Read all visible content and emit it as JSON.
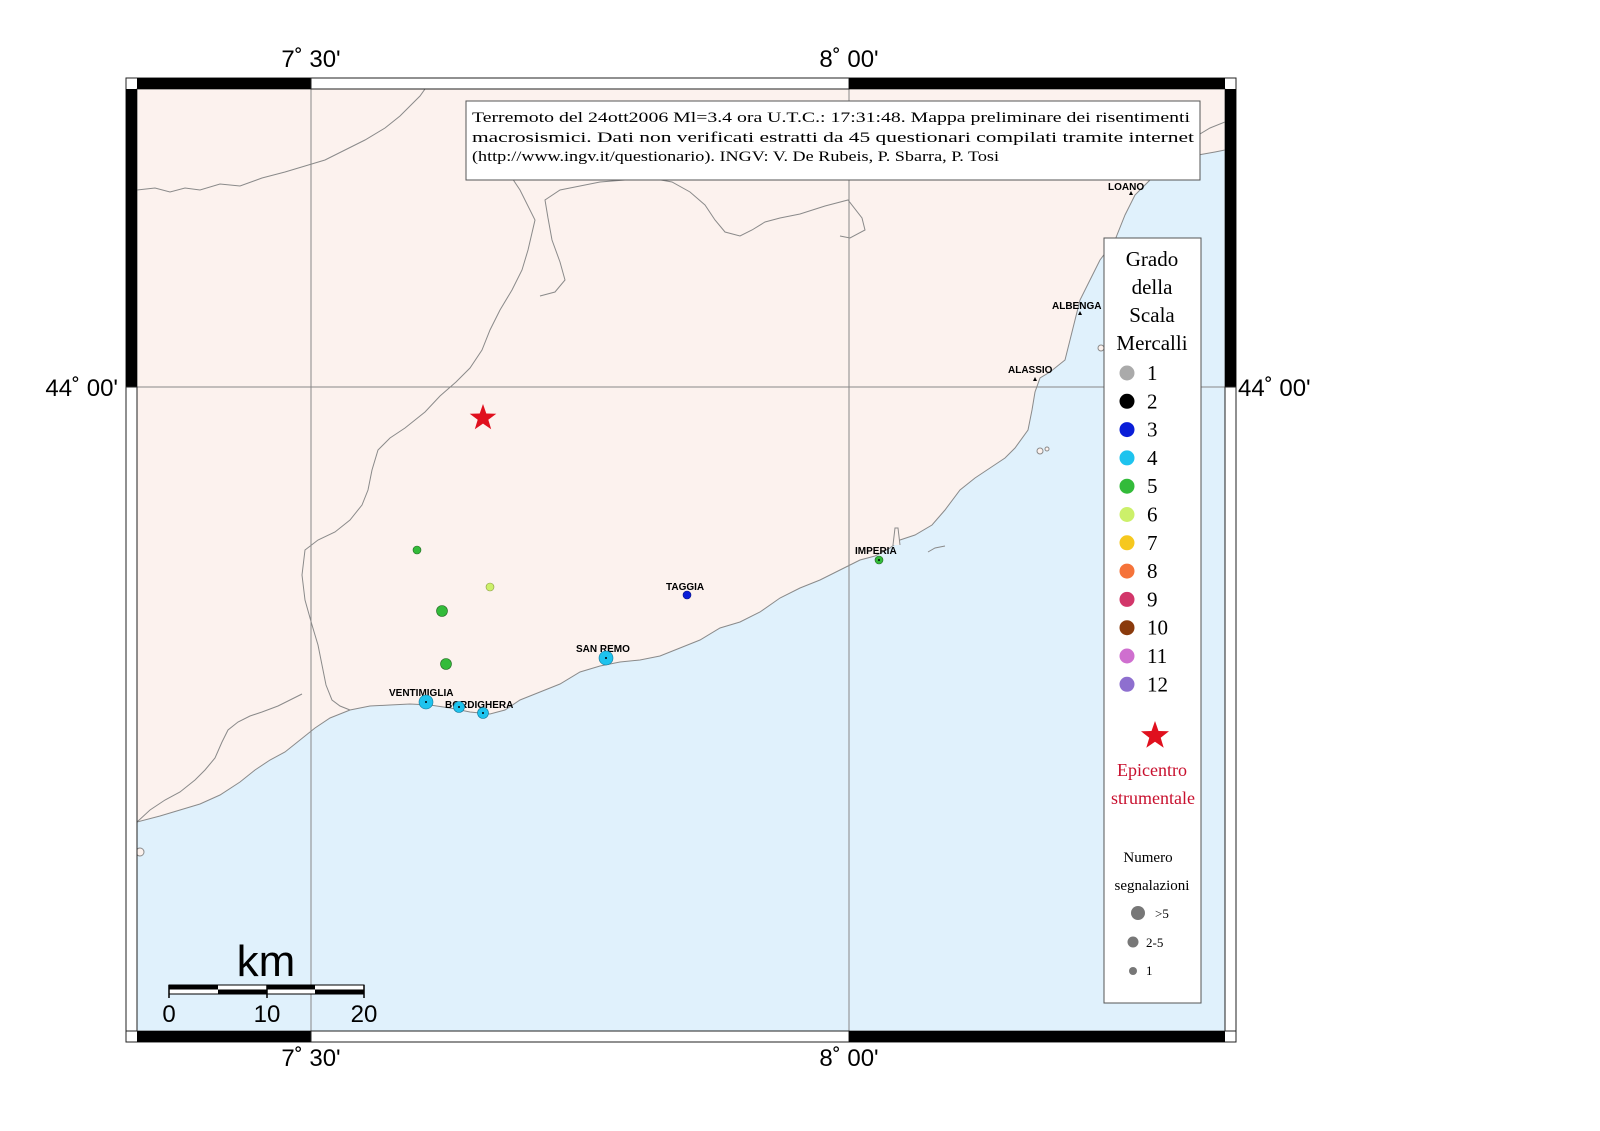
{
  "info_text": {
    "line1": "Terremoto del 24ott2006 Ml=3.4 ora U.T.C.: 17:31:48.  Mappa preliminare dei risentimenti",
    "line2": "macrosismici.  Dati non verificati estratti da 45 questionari compilati tramite internet",
    "line3": "(http://www.ingv.it/questionario).  INGV: V.  De Rubeis, P.  Sbarra, P.  Tosi"
  },
  "grid_labels": {
    "lon_west": "7˚ 30'",
    "lon_east": "8˚ 00'",
    "lat": "44˚ 00'"
  },
  "towns": [
    {
      "name": "LOANO"
    },
    {
      "name": "ALBENGA"
    },
    {
      "name": "ALASSIO"
    },
    {
      "name": "IMPERIA"
    },
    {
      "name": "TAGGIA"
    },
    {
      "name": "SAN REMO"
    },
    {
      "name": "VENTIMIGLIA"
    },
    {
      "name": "BORDIGHERA"
    }
  ],
  "legend": {
    "title": [
      "Grado",
      "della",
      "Scala",
      "Mercalli"
    ],
    "grades": [
      {
        "label": "1",
        "color": "#aaaaaa"
      },
      {
        "label": "2",
        "color": "#000000"
      },
      {
        "label": "3",
        "color": "#0a1ed8"
      },
      {
        "label": "4",
        "color": "#1ec3ee"
      },
      {
        "label": "5",
        "color": "#33bb3a"
      },
      {
        "label": "6",
        "color": "#ccf06a"
      },
      {
        "label": "7",
        "color": "#f6c81e"
      },
      {
        "label": "8",
        "color": "#f5733a"
      },
      {
        "label": "9",
        "color": "#d2366a"
      },
      {
        "label": "10",
        "color": "#8a3a0c"
      },
      {
        "label": "11",
        "color": "#cf6fcf"
      },
      {
        "label": "12",
        "color": "#8e6fcf"
      }
    ],
    "epicenter_line1": "Epicentro",
    "epicenter_line2": "strumentale",
    "count_title_line1": "Numero",
    "count_title_line2": "segnalazioni",
    "count_items": [
      ">5",
      "2-5",
      "1"
    ]
  },
  "observations": [
    {
      "grade": "5",
      "count": "1"
    },
    {
      "grade": "6",
      "count": "1"
    },
    {
      "grade": "5",
      "count": "2-5"
    },
    {
      "grade": "5",
      "count": "2-5"
    },
    {
      "grade": "3",
      "count": "1"
    },
    {
      "grade": "4",
      "count": ">5"
    },
    {
      "grade": "4",
      "count": ">5"
    },
    {
      "grade": "4",
      "count": "2-5"
    },
    {
      "grade": "4",
      "count": "2-5"
    },
    {
      "grade": "5",
      "count": "1"
    }
  ],
  "scale_bar": {
    "unit": "km",
    "ticks": [
      "0",
      "10",
      "20"
    ]
  },
  "colors": {
    "land": "#fcf2ee",
    "sea": "#e0f1fc",
    "epicenter": "#e0101e",
    "legend_epicenter_text": "#c8102e"
  }
}
